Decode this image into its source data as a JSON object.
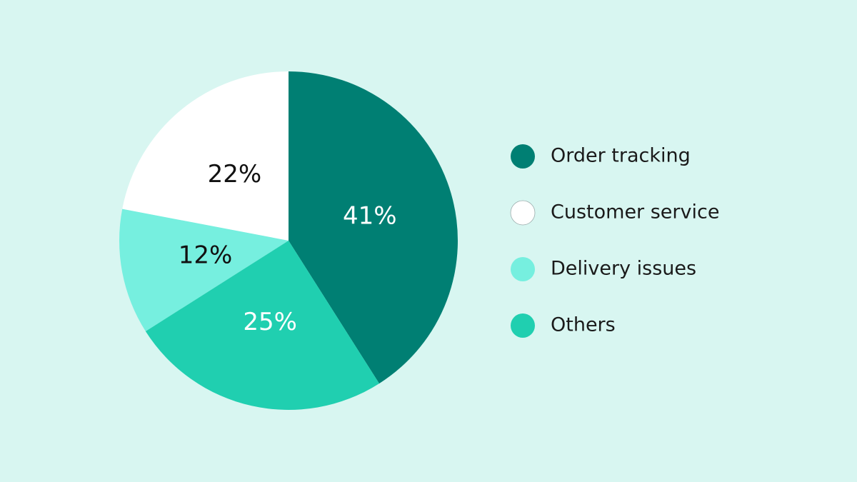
{
  "chart_data": {
    "type": "pie",
    "categories": [
      "Order tracking",
      "Customer service",
      "Delivery issues",
      "Others"
    ],
    "values": [
      41,
      22,
      12,
      25
    ],
    "value_labels": [
      "41%",
      "22%",
      "12%",
      "25%"
    ],
    "colors": [
      "#007f73",
      "#ffffff",
      "#76efdf",
      "#20cfb0"
    ],
    "label_colors": [
      "#ffffff",
      "#111111",
      "#111111",
      "#ffffff"
    ],
    "counterclock": true,
    "legend": "right"
  }
}
